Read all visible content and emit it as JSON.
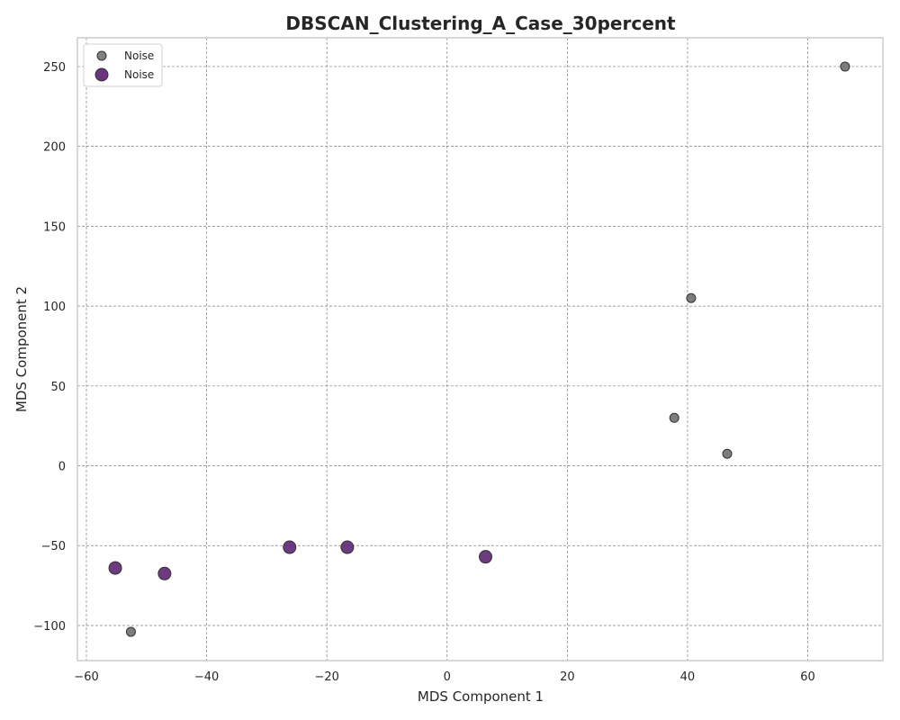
{
  "chart_data": {
    "type": "scatter",
    "title": "DBSCAN_Clustering_A_Case_30percent",
    "xlabel": "MDS Component 1",
    "ylabel": "MDS Component 2",
    "xlim": [
      -61.5,
      72.5
    ],
    "ylim": [
      -122,
      268
    ],
    "xticks": [
      -60,
      -40,
      -20,
      0,
      20,
      40,
      60
    ],
    "yticks": [
      -100,
      -50,
      0,
      50,
      100,
      150,
      200,
      250
    ],
    "grid": true,
    "legend_position": "top-left",
    "series": [
      {
        "name": "Noise",
        "color": "#6b6b6b",
        "marker": "small-circle",
        "points": [
          {
            "x": 66.2,
            "y": 250
          },
          {
            "x": 40.6,
            "y": 105
          },
          {
            "x": 37.8,
            "y": 30
          },
          {
            "x": 46.6,
            "y": 7.5
          },
          {
            "x": -52.6,
            "y": -104
          }
        ]
      },
      {
        "name": "Noise",
        "color": "#5a1f6e",
        "marker": "large-circle",
        "points": [
          {
            "x": -55.2,
            "y": -64
          },
          {
            "x": -47.0,
            "y": -67.5
          },
          {
            "x": -26.2,
            "y": -51
          },
          {
            "x": -16.6,
            "y": -51
          },
          {
            "x": 6.4,
            "y": -57
          }
        ]
      }
    ]
  }
}
